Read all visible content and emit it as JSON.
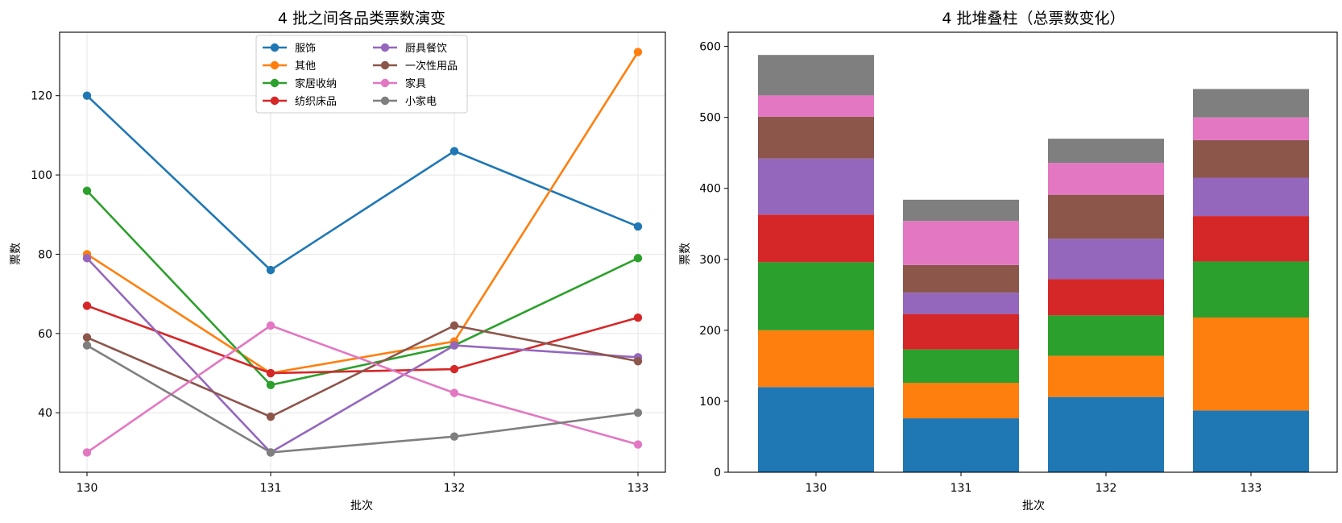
{
  "colors": {
    "服饰": "#1f77b4",
    "其他": "#ff7f0e",
    "家居收纳": "#2ca02c",
    "纺织床品": "#d62728",
    "厨具餐饮": "#9467bd",
    "一次性用品": "#8c564b",
    "家具": "#e377c2",
    "小家电": "#7f7f7f"
  },
  "chart_data": [
    {
      "type": "line",
      "title": "4 批之间各品类票数演变",
      "xlabel": "批次",
      "ylabel": "票数",
      "categories": [
        "130",
        "131",
        "132",
        "133"
      ],
      "ylim": [
        25,
        136
      ],
      "yticks": [
        40,
        60,
        80,
        100,
        120
      ],
      "grid": true,
      "legend_position": "top-center",
      "series": [
        {
          "name": "服饰",
          "values": [
            120,
            76,
            106,
            87
          ]
        },
        {
          "name": "其他",
          "values": [
            80,
            50,
            58,
            131
          ]
        },
        {
          "name": "家居收纳",
          "values": [
            96,
            47,
            57,
            79
          ]
        },
        {
          "name": "纺织床品",
          "values": [
            67,
            50,
            51,
            64
          ]
        },
        {
          "name": "厨具餐饮",
          "values": [
            79,
            30,
            57,
            54
          ]
        },
        {
          "name": "一次性用品",
          "values": [
            59,
            39,
            62,
            53
          ]
        },
        {
          "name": "家具",
          "values": [
            30,
            62,
            45,
            32
          ]
        },
        {
          "name": "小家电",
          "values": [
            57,
            30,
            34,
            40
          ]
        }
      ]
    },
    {
      "type": "bar",
      "stacked": true,
      "title": "4 批堆叠柱（总票数变化）",
      "xlabel": "批次",
      "ylabel": "票数",
      "categories": [
        "130",
        "131",
        "132",
        "133"
      ],
      "ylim": [
        0,
        620
      ],
      "yticks": [
        0,
        100,
        200,
        300,
        400,
        500,
        600
      ],
      "grid": false,
      "series": [
        {
          "name": "服饰",
          "values": [
            120,
            76,
            106,
            87
          ]
        },
        {
          "name": "其他",
          "values": [
            80,
            50,
            58,
            131
          ]
        },
        {
          "name": "家居收纳",
          "values": [
            96,
            47,
            57,
            79
          ]
        },
        {
          "name": "纺织床品",
          "values": [
            67,
            50,
            51,
            64
          ]
        },
        {
          "name": "厨具餐饮",
          "values": [
            79,
            30,
            57,
            54
          ]
        },
        {
          "name": "一次性用品",
          "values": [
            59,
            39,
            62,
            53
          ]
        },
        {
          "name": "家具",
          "values": [
            30,
            62,
            45,
            32
          ]
        },
        {
          "name": "小家电",
          "values": [
            57,
            30,
            34,
            40
          ]
        }
      ]
    }
  ]
}
